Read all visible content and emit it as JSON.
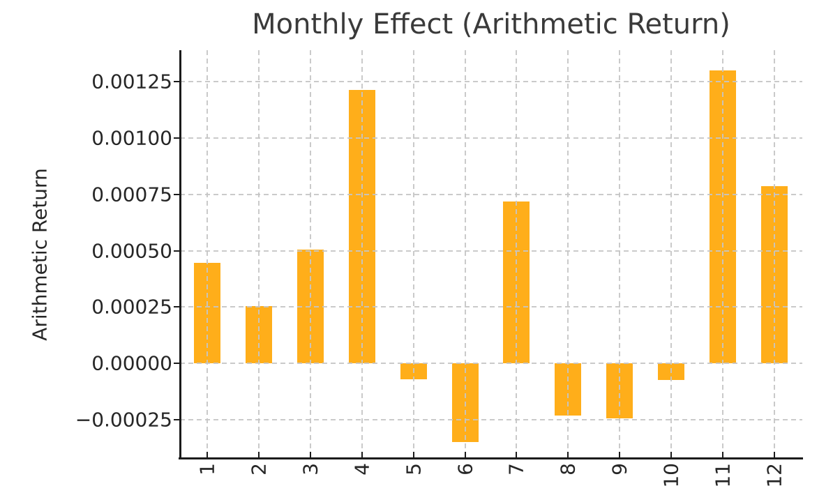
{
  "figure": {
    "background": "#ffffff"
  },
  "chart_data": {
    "type": "bar",
    "title": "Monthly Effect (Arithmetic Return)",
    "xlabel": "",
    "ylabel": "Arithmetic Return",
    "categories": [
      "1",
      "2",
      "3",
      "4",
      "5",
      "6",
      "7",
      "8",
      "9",
      "10",
      "11",
      "12"
    ],
    "values": [
      0.000445,
      0.000253,
      0.000505,
      0.001215,
      -7e-05,
      -0.00035,
      0.00072,
      -0.00023,
      -0.000245,
      -7.3e-05,
      0.0013,
      0.000788
    ],
    "series_name": "Monthly effect (arithmetic return)",
    "bar_color": "#FFAE1A",
    "grid": true,
    "grid_style": "dashed",
    "grid_color": "#c9c9c9",
    "spine_color": "#1b1b1b",
    "text_color": "#262626",
    "title_color": "#3a3a3a",
    "ylim": [
      -0.00042,
      0.00139
    ],
    "yticks": {
      "values": [
        -0.00025,
        0.0,
        0.00025,
        0.0005,
        0.00075,
        0.001,
        0.00125
      ],
      "labels": [
        "−0.00025",
        "0.00000",
        "0.00025",
        "0.00050",
        "0.00075",
        "0.00100",
        "0.00125"
      ]
    },
    "xtick_rotation_deg": 90,
    "legend": null
  }
}
